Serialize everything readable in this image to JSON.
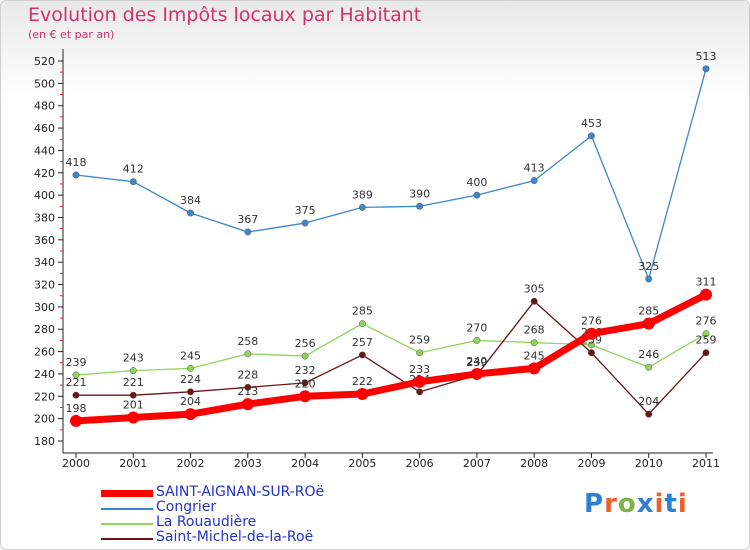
{
  "title": "Evolution des Impôts locaux par Habitant",
  "subtitle": "(en € et par an)",
  "brand": {
    "text": "Proxiti",
    "letters": [
      "P",
      "r",
      "o",
      "x",
      "i",
      "t",
      "i"
    ],
    "colors": [
      "#2d7fd3",
      "#e8612c",
      "#7cb342",
      "#2d7fd3",
      "#e8612c",
      "#2d7fd3",
      "#e8612c"
    ]
  },
  "chart_data": {
    "type": "line",
    "title": "Evolution des Impôts locaux par Habitant",
    "ylabel": "(en € et par an)",
    "xlabel": "",
    "ylim": [
      180,
      520
    ],
    "yticks": [
      180,
      200,
      220,
      240,
      260,
      280,
      300,
      320,
      340,
      360,
      380,
      400,
      420,
      440,
      460,
      480,
      500,
      520
    ],
    "x": [
      "2000",
      "2001",
      "2002",
      "2003",
      "2004",
      "2005",
      "2006",
      "2007",
      "2008",
      "2009",
      "2010",
      "2011"
    ],
    "grid": false,
    "series": [
      {
        "name": "SAINT-AIGNAN-SUR-ROë",
        "color": "#ff0000",
        "values": [
          198,
          201,
          204,
          213,
          220,
          222,
          233,
          240,
          245,
          276,
          285,
          311
        ]
      },
      {
        "name": "Congrier",
        "color": "#3a87cc",
        "values": [
          418,
          412,
          384,
          367,
          375,
          389,
          390,
          400,
          413,
          453,
          325,
          513
        ]
      },
      {
        "name": "La Rouaudière",
        "color": "#8ed35a",
        "values": [
          239,
          243,
          245,
          258,
          256,
          285,
          259,
          270,
          268,
          266,
          246,
          276
        ]
      },
      {
        "name": "Saint-Michel-de-la-Roë",
        "color": "#6b1414",
        "values": [
          221,
          221,
          224,
          228,
          232,
          257,
          224,
          239,
          305,
          259,
          204,
          259
        ]
      }
    ]
  }
}
